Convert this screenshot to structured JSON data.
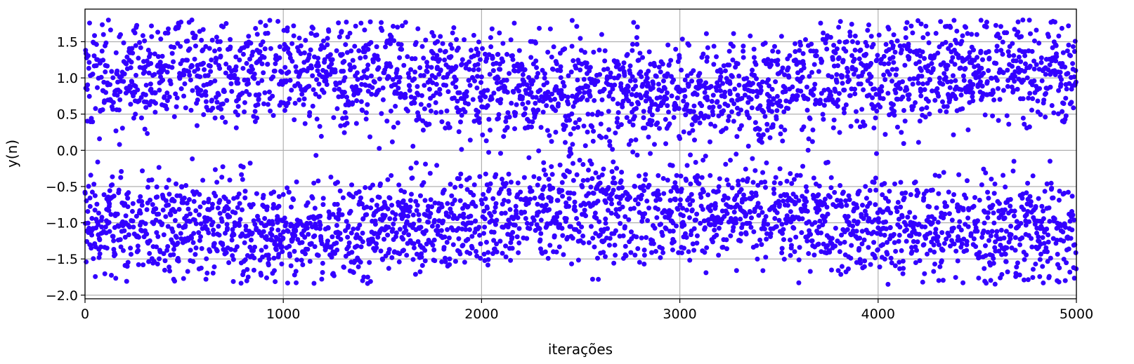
{
  "chart_data": {
    "type": "scatter",
    "title": "",
    "xlabel": "iterações",
    "ylabel": "y(n)",
    "xlim": [
      0,
      5000
    ],
    "ylim": [
      -2.05,
      1.95
    ],
    "xticks": [
      0,
      1000,
      2000,
      3000,
      4000,
      5000
    ],
    "xtick_labels": [
      "0",
      "1000",
      "2000",
      "3000",
      "4000",
      "5000"
    ],
    "yticks": [
      -2.0,
      -1.5,
      -1.0,
      -0.5,
      0.0,
      0.5,
      1.0,
      1.5
    ],
    "ytick_labels": [
      "−2.0",
      "−1.5",
      "−1.0",
      "−0.5",
      "0.0",
      "0.5",
      "1.0",
      "1.5"
    ],
    "grid": true,
    "marker_color": "#3300ff",
    "series": [
      {
        "n_points": 5000,
        "distribution": "bimodal, concentrated near +1 and -1, spread approx. ±0.6 around each mode",
        "values_range": [
          -1.85,
          1.8
        ],
        "notable_points": [
          {
            "x": 4730,
            "y": 1.8
          },
          {
            "x": 1600,
            "y": 1.72
          },
          {
            "x": 4050,
            "y": 1.7
          },
          {
            "x": 1020,
            "y": 1.65
          },
          {
            "x": 4050,
            "y": -1.85
          },
          {
            "x": 3600,
            "y": -1.83
          },
          {
            "x": 1400,
            "y": -1.8
          },
          {
            "x": 2560,
            "y": -1.78
          },
          {
            "x": 610,
            "y": -1.78
          }
        ]
      }
    ]
  }
}
